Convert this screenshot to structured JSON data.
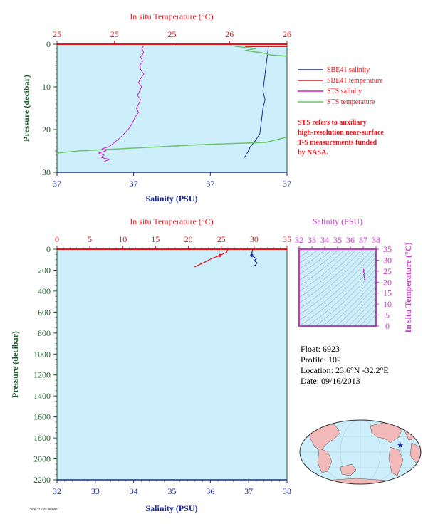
{
  "chart_data": [
    {
      "id": "top_profile",
      "type": "line",
      "title": "",
      "temp_axis": {
        "label": "In situ Temperature (°C)",
        "ticks": [
          "25",
          "25",
          "25",
          "26",
          "26"
        ],
        "range": [
          24.9,
          26.0
        ]
      },
      "sal_axis": {
        "label": "Salinity (PSU)",
        "ticks": [
          "37",
          "37",
          "37",
          "37"
        ],
        "range": [
          36.9,
          37.12
        ]
      },
      "pressure_axis": {
        "label": "Pressure (decibar)",
        "ticks": [
          "0",
          "10",
          "20",
          "30"
        ],
        "range": [
          0,
          30
        ]
      },
      "legend": [
        {
          "label": "SBE41 salinity",
          "color": "#1a2aa0"
        },
        {
          "label": "SBE41 temperature",
          "color": "#e8141c"
        },
        {
          "label": "STS salinity",
          "color": "#d01fd0"
        },
        {
          "label": "STS temperature",
          "color": "#6fc46f"
        }
      ],
      "note": [
        "STS refers to auxiliary",
        "high-resolution near-surface",
        "T-S measurements funded",
        "by NASA."
      ],
      "series": [
        {
          "name": "SBE41 salinity",
          "color": "#1a2aa0",
          "p": [
            1,
            3,
            5,
            7,
            9,
            11,
            13,
            15,
            17,
            19,
            21,
            22.5,
            24,
            25.5,
            27
          ],
          "v": [
            37.102,
            37.101,
            37.1,
            37.099,
            37.098,
            37.097,
            37.099,
            37.097,
            37.096,
            37.095,
            37.094,
            37.09,
            37.085,
            37.082,
            37.078
          ]
        },
        {
          "name": "SBE41 temperature",
          "color": "#e8141c",
          "p": [
            0.5
          ],
          "v": [
            26.0
          ]
        },
        {
          "name": "STS salinity",
          "color": "#d01fd0",
          "p": [
            0.3,
            1,
            2,
            3,
            4,
            5,
            6,
            7,
            8,
            9,
            10,
            11,
            12,
            13,
            14,
            15,
            16,
            17,
            18,
            19,
            20,
            21,
            22,
            23,
            24,
            24.5,
            25,
            25.5,
            26,
            26.5,
            27,
            27.5
          ],
          "v": [
            36.983,
            36.981,
            36.983,
            36.98,
            36.982,
            36.979,
            36.98,
            36.983,
            36.98,
            36.978,
            36.981,
            36.979,
            36.977,
            36.98,
            36.978,
            36.976,
            36.978,
            36.975,
            36.973,
            36.971,
            36.968,
            36.964,
            36.96,
            36.955,
            36.95,
            36.943,
            36.947,
            36.94,
            36.945,
            36.942,
            36.95,
            36.945
          ]
        },
        {
          "name": "STS temperature",
          "color": "#6fc46f",
          "p": [
            0.5,
            1,
            1.5,
            2,
            2.5,
            3,
            4,
            5,
            6,
            7,
            8,
            9,
            10,
            11,
            12,
            13,
            14,
            15,
            16,
            17,
            18,
            19,
            20,
            21,
            22,
            23,
            23.5,
            24,
            24.5,
            25,
            25.5,
            26,
            26.5,
            27,
            27.5
          ],
          "v": [
            25.75,
            25.85,
            25.8,
            25.88,
            25.92,
            26.05,
            26.12,
            26.18,
            26.2,
            26.22,
            26.15,
            26.12,
            26.18,
            26.1,
            26.14,
            26.16,
            26.13,
            26.18,
            26.22,
            26.19,
            26.14,
            26.08,
            26.12,
            26.05,
            25.98,
            25.9,
            25.6,
            25.4,
            25.2,
            25.0,
            24.9,
            24.8,
            24.75,
            24.72,
            24.7
          ]
        }
      ]
    },
    {
      "id": "full_profile",
      "type": "line",
      "title": "",
      "temp_axis": {
        "label": "In situ Temperature (°C)",
        "ticks": [
          "0",
          "5",
          "10",
          "15",
          "20",
          "25",
          "30",
          "35"
        ],
        "range": [
          0,
          35
        ]
      },
      "sal_axis": {
        "label": "Salinity (PSU)",
        "ticks": [
          "32",
          "33",
          "34",
          "35",
          "36",
          "37",
          "38"
        ],
        "range": [
          32,
          38
        ]
      },
      "pressure_axis": {
        "label": "Pressure (decibar)",
        "ticks": [
          "0",
          "200",
          "400",
          "600",
          "800",
          "1000",
          "1200",
          "1400",
          "1600",
          "1800",
          "2000",
          "2200"
        ],
        "range": [
          0,
          2200
        ]
      },
      "series": [
        {
          "name": "temperature",
          "color": "#e8141c",
          "p": [
            5,
            30,
            60,
            90,
            120,
            150,
            170
          ],
          "v": [
            26.0,
            25.8,
            24.8,
            23.5,
            22.6,
            21.6,
            20.9
          ]
        },
        {
          "name": "salinity",
          "color": "#1a2aa0",
          "p": [
            5,
            30,
            60,
            90,
            110,
            130,
            150,
            165
          ],
          "v": [
            37.1,
            37.09,
            37.08,
            37.2,
            37.15,
            37.22,
            37.18,
            37.12
          ]
        }
      ],
      "temp_marker": {
        "p": 60,
        "v": 24.8
      },
      "sal_marker": {
        "p": 60,
        "v": 37.08
      }
    },
    {
      "id": "ts_diagram",
      "type": "scatter",
      "title": "",
      "sal_axis": {
        "label": "Salinity (PSU)",
        "ticks": [
          "32",
          "33",
          "34",
          "35",
          "36",
          "37",
          "38"
        ],
        "range": [
          32,
          38
        ]
      },
      "temp_axis": {
        "label": "In situ Temperature (°C)",
        "ticks": [
          "0",
          "5",
          "10",
          "15",
          "20",
          "25",
          "30",
          "35"
        ],
        "range": [
          0,
          35
        ]
      },
      "series": [
        {
          "name": "T-S",
          "color": "#d01fd0",
          "s": [
            37.02,
            37.06,
            37.04,
            37.09,
            37.05,
            37.1,
            37.08,
            37.12,
            37.1
          ],
          "t": [
            26.0,
            25.4,
            24.6,
            24.0,
            23.4,
            22.8,
            22.2,
            21.6,
            21.0
          ]
        }
      ]
    }
  ],
  "float_info": {
    "float": "Float:  6923",
    "profile": "Profile:  102",
    "location": "Location:  23.6°N  -32.2°E",
    "date": "Date:  09/16/2013"
  },
  "map": {
    "marker": "star",
    "marker_color": "#1a2aa0",
    "land_color": "#f2b9b9",
    "ocean_color": "#cdeefb"
  },
  "footer_code": "7900 712205 0000074"
}
